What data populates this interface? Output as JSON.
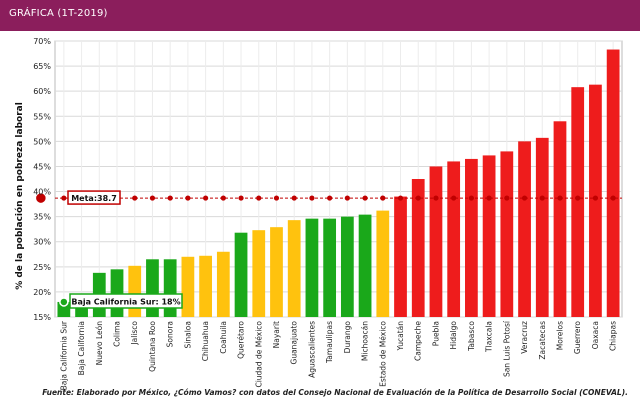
{
  "header": {
    "title": "GRÁFICA (1T-2019)"
  },
  "chart_data": {
    "type": "bar",
    "ylabel": "% de la población en pobreza laboral",
    "ylim": [
      15,
      70
    ],
    "yticks": [
      "15%",
      "20%",
      "25%",
      "30%",
      "35%",
      "40%",
      "45%",
      "50%",
      "55%",
      "60%",
      "65%",
      "70%"
    ],
    "yticks_values": [
      15,
      20,
      25,
      30,
      35,
      40,
      45,
      50,
      55,
      60,
      65,
      70
    ],
    "grid": true,
    "colors": {
      "green": "#1aa81a",
      "yellow": "#ffc20e",
      "red": "#ee1c1c",
      "meta": "#c00000"
    },
    "categories": [
      "Baja California Sur",
      "Baja California",
      "Nuevo León",
      "Colima",
      "Jalisco",
      "Quintana Roo",
      "Sonora",
      "Sinaloa",
      "Chihuahua",
      "Coahuila",
      "Querétaro",
      "Ciudad de México",
      "Nayarit",
      "Guanajuato",
      "Aguascalientes",
      "Tamaulipas",
      "Durango",
      "Michoacán",
      "Estado de México",
      "Yucatán",
      "Campeche",
      "Puebla",
      "Hidalgo",
      "Tabasco",
      "Tlaxcala",
      "San Luis Potosí",
      "Veracruz",
      "Zacatecas",
      "Morelos",
      "Guerrero",
      "Oaxaca",
      "Chiapas"
    ],
    "values": [
      18,
      19.2,
      23.8,
      24.5,
      25.2,
      26.5,
      26.5,
      27,
      27.2,
      28,
      31.8,
      32.3,
      32.9,
      34.3,
      34.6,
      34.6,
      35,
      35.4,
      36.2,
      39,
      42.5,
      45,
      46,
      46.5,
      47.2,
      48,
      50,
      50.7,
      54,
      60.8,
      61.3,
      68.3
    ],
    "bar_colors": [
      "green",
      "green",
      "green",
      "green",
      "yellow",
      "green",
      "green",
      "yellow",
      "yellow",
      "yellow",
      "green",
      "yellow",
      "yellow",
      "yellow",
      "green",
      "green",
      "green",
      "green",
      "yellow",
      "red",
      "red",
      "red",
      "red",
      "red",
      "red",
      "red",
      "red",
      "red",
      "red",
      "red",
      "red",
      "red"
    ],
    "meta": {
      "value": 38.7,
      "label": "Meta:38.7"
    },
    "annotation": {
      "label": "Baja California Sur: 18%"
    }
  },
  "source": "Fuente: Elaborado por México, ¿Cómo Vamos? con datos del Consejo Nacional de Evaluación de la Política de Desarrollo Social (CONEVAL)."
}
